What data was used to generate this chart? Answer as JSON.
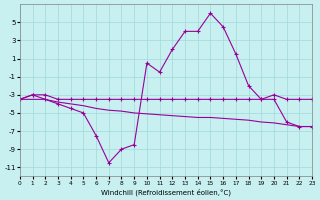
{
  "hours": [
    0,
    1,
    2,
    3,
    4,
    5,
    6,
    7,
    8,
    9,
    10,
    11,
    12,
    13,
    14,
    15,
    16,
    17,
    18,
    19,
    20,
    21,
    22,
    23
  ],
  "line1": [
    -3.5,
    -3.0,
    -3.0,
    -3.5,
    -3.5,
    -3.5,
    -3.5,
    -3.5,
    -3.5,
    -3.5,
    -3.5,
    -3.5,
    -3.5,
    -3.5,
    -3.5,
    -3.5,
    -3.5,
    -3.5,
    -3.5,
    -3.5,
    -3.0,
    -3.5,
    -3.5,
    -3.5
  ],
  "line2": [
    -3.5,
    -3.0,
    -3.5,
    -4.0,
    -4.5,
    -5.0,
    -7.5,
    -10.5,
    -9.0,
    -8.5,
    0.5,
    -0.5,
    2.0,
    4.0,
    4.0,
    6.0,
    4.5,
    1.5,
    -2.0,
    -3.5,
    -3.5,
    -6.0,
    -6.5,
    -6.5
  ],
  "line3": [
    -3.5,
    -3.5,
    -3.5,
    -3.8,
    -4.0,
    -4.2,
    -4.5,
    -4.7,
    -4.8,
    -5.0,
    -5.1,
    -5.2,
    -5.3,
    -5.4,
    -5.5,
    -5.5,
    -5.6,
    -5.7,
    -5.8,
    -6.0,
    -6.1,
    -6.3,
    -6.5,
    -6.5
  ],
  "bg_color": "#c8f0f0",
  "grid_color": "#a0d8d8",
  "line_color": "#990099",
  "marker": "+",
  "xlabel": "Windchill (Refroidissement éolien,°C)",
  "ylim": [
    -12,
    7
  ],
  "xlim": [
    0,
    23
  ],
  "yticks": [
    -11,
    -9,
    -7,
    -5,
    -3,
    -1,
    1,
    3,
    5
  ],
  "xticks": [
    0,
    1,
    2,
    3,
    4,
    5,
    6,
    7,
    8,
    9,
    10,
    11,
    12,
    13,
    14,
    15,
    16,
    17,
    18,
    19,
    20,
    21,
    22,
    23
  ]
}
